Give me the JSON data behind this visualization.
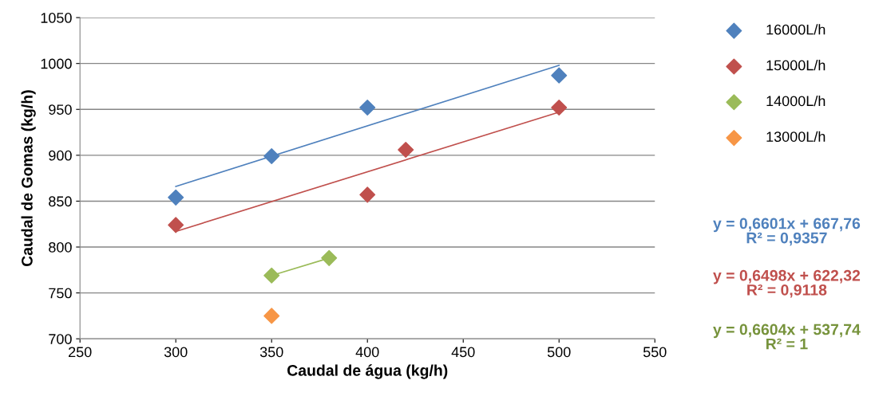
{
  "chart_data": {
    "type": "scatter",
    "xlabel": "Caudal de água (kg/h)",
    "ylabel": "Caudal de Gomas (kg/h)",
    "xlim": [
      250,
      550
    ],
    "xticks": [
      250,
      300,
      350,
      400,
      450,
      500,
      550
    ],
    "ylim": [
      700,
      1050
    ],
    "yticks": [
      700,
      750,
      800,
      850,
      900,
      950,
      1000,
      1050
    ],
    "grid": "y",
    "legend": "right",
    "marker": "diamond",
    "series": [
      {
        "name": "16000L/h",
        "color": "#4f81bd",
        "x": [
          300,
          350,
          400,
          500
        ],
        "values": [
          854,
          899,
          952,
          987
        ]
      },
      {
        "name": "15000L/h",
        "color": "#c0504d",
        "x": [
          300,
          400,
          420,
          500
        ],
        "values": [
          824,
          857,
          906,
          952
        ]
      },
      {
        "name": "14000L/h",
        "color": "#9bbb59",
        "x": [
          350,
          380
        ],
        "values": [
          769,
          788
        ]
      },
      {
        "name": "13000L/h",
        "color": "#f79646",
        "x": [
          350
        ],
        "values": [
          725
        ]
      },
      {
        "type": "line",
        "marker": "none",
        "color": "#4f81bd",
        "x": [
          300,
          500
        ],
        "values": [
          866,
          998
        ]
      },
      {
        "type": "line",
        "marker": "none",
        "color": "#c0504d",
        "x": [
          300,
          500
        ],
        "values": [
          817,
          947
        ]
      },
      {
        "type": "line",
        "marker": "none",
        "color": "#9bbb59",
        "x": [
          350,
          380
        ],
        "values": [
          769,
          788
        ]
      }
    ],
    "annotations": [
      "y = 0,6601x + 667,76\nR² = 0,9357",
      "y = 0,6498x + 622,32\nR² = 0,9118",
      "y = 0,6604x + 537,74\nR² = 1"
    ]
  }
}
